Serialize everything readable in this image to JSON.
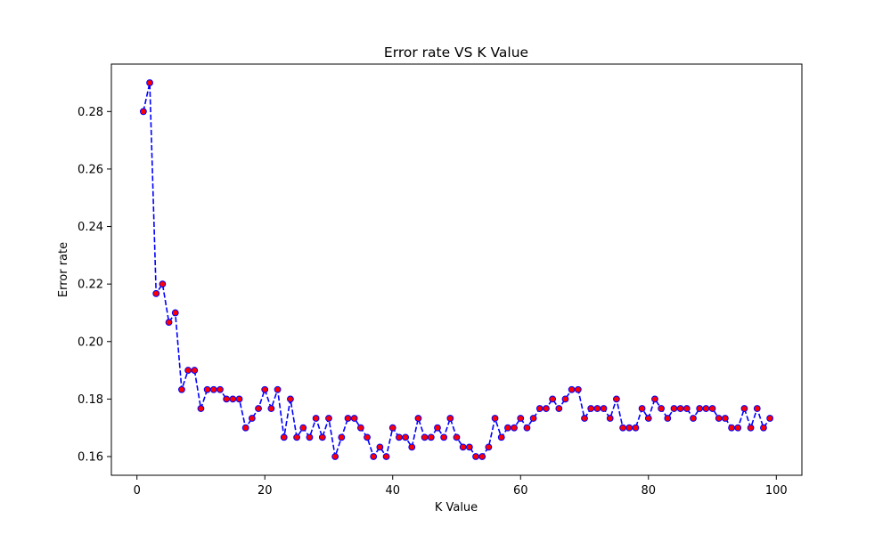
{
  "chart_data": {
    "type": "line",
    "title": "Error rate VS K Value",
    "xlabel": "K Value",
    "ylabel": "Error rate",
    "xlim": [
      -4,
      104
    ],
    "ylim": [
      0.1535,
      0.2965
    ],
    "xticks": [
      0,
      20,
      40,
      60,
      80,
      100
    ],
    "yticks": [
      0.16,
      0.18,
      0.2,
      0.22,
      0.24,
      0.26,
      0.28
    ],
    "grid": false,
    "line_style": "dashed",
    "colors": {
      "line": "#0000ff",
      "marker_face": "#ff0000",
      "marker_edge": "#0000ff"
    },
    "series": [
      {
        "x": [
          1,
          2,
          3,
          4,
          5,
          6,
          7,
          8,
          9,
          10,
          11,
          12,
          13,
          14,
          15,
          16,
          17,
          18,
          19,
          20,
          21,
          22,
          23,
          24,
          25,
          26,
          27,
          28,
          29,
          30,
          31,
          32,
          33,
          34,
          35,
          36,
          37,
          38,
          39,
          40,
          41,
          42,
          43,
          44,
          45,
          46,
          47,
          48,
          49,
          50,
          51,
          52,
          53,
          54,
          55,
          56,
          57,
          58,
          59,
          60,
          61,
          62,
          63,
          64,
          65,
          66,
          67,
          68,
          69,
          70,
          71,
          72,
          73,
          74,
          75,
          76,
          77,
          78,
          79,
          80,
          81,
          82,
          83,
          84,
          85,
          86,
          87,
          88,
          89,
          90,
          91,
          92,
          93,
          94,
          95,
          96,
          97,
          98,
          99
        ],
        "y": [
          0.28,
          0.29,
          0.2167,
          0.22,
          0.2067,
          0.21,
          0.1833,
          0.19,
          0.19,
          0.1767,
          0.1833,
          0.1833,
          0.1833,
          0.18,
          0.18,
          0.18,
          0.17,
          0.1733,
          0.1767,
          0.1833,
          0.1767,
          0.1833,
          0.1667,
          0.18,
          0.1667,
          0.17,
          0.1667,
          0.1733,
          0.1667,
          0.1733,
          0.16,
          0.1667,
          0.1733,
          0.1733,
          0.17,
          0.1667,
          0.16,
          0.1633,
          0.16,
          0.17,
          0.1667,
          0.1667,
          0.1633,
          0.1733,
          0.1667,
          0.1667,
          0.17,
          0.1667,
          0.1733,
          0.1667,
          0.1633,
          0.1633,
          0.16,
          0.16,
          0.1633,
          0.1733,
          0.1667,
          0.17,
          0.17,
          0.1733,
          0.17,
          0.1733,
          0.1767,
          0.1767,
          0.18,
          0.1767,
          0.18,
          0.1833,
          0.1833,
          0.1733,
          0.1767,
          0.1767,
          0.1767,
          0.1733,
          0.18,
          0.17,
          0.17,
          0.17,
          0.1767,
          0.1733,
          0.18,
          0.1767,
          0.1733,
          0.1767,
          0.1767,
          0.1767,
          0.1733,
          0.1767,
          0.1767,
          0.1767,
          0.1733,
          0.1733,
          0.17,
          0.17,
          0.1767,
          0.17,
          0.1767,
          0.17,
          0.1733
        ]
      }
    ]
  }
}
